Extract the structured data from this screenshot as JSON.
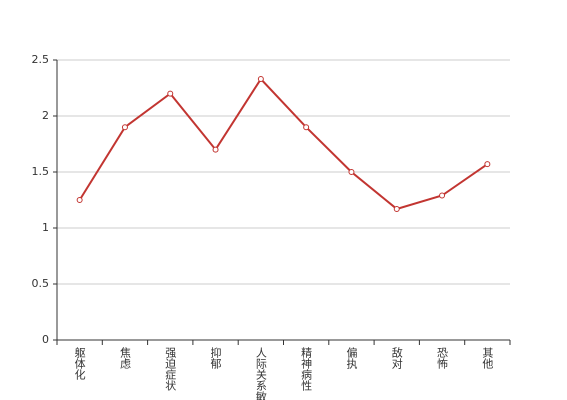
{
  "chart_data": {
    "type": "line",
    "categories": [
      "躯体化",
      "焦虑",
      "强迫症状",
      "抑郁",
      "人际关系敏感",
      "精神病性",
      "偏执",
      "敌对",
      "恐怖",
      "其他"
    ],
    "values": [
      1.25,
      1.9,
      2.2,
      1.7,
      2.33,
      1.9,
      1.5,
      1.17,
      1.29,
      1.57
    ],
    "color": "#c23531",
    "ylim": [
      0,
      2.5
    ],
    "yticks": [
      0,
      0.5,
      1,
      1.5,
      2,
      2.5
    ],
    "grid": true
  }
}
